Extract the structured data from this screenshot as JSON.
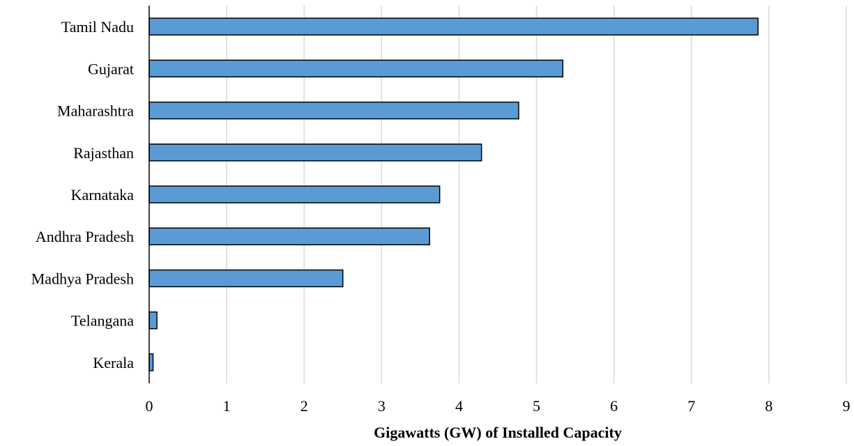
{
  "chart_data": {
    "type": "bar",
    "orientation": "horizontal",
    "title": "",
    "xlabel": "Gigawatts (GW) of Installed Capacity",
    "ylabel": "",
    "categories": [
      "Tamil Nadu",
      "Gujarat",
      "Maharashtra",
      "Rajasthan",
      "Karnataka",
      "Andhra Pradesh",
      "Madhya Pradesh",
      "Telangana",
      "Kerala"
    ],
    "values": [
      7.86,
      5.34,
      4.77,
      4.29,
      3.75,
      3.62,
      2.5,
      0.1,
      0.05
    ],
    "xlim": [
      0,
      9
    ],
    "xticks": [
      "0",
      "1",
      "2",
      "3",
      "4",
      "5",
      "6",
      "7",
      "8",
      "9"
    ],
    "grid": "vertical",
    "legend": "none",
    "bar_color": "#5b9bd5",
    "bar_edge_color": "#000000",
    "grid_color": "#d9d9d9"
  }
}
